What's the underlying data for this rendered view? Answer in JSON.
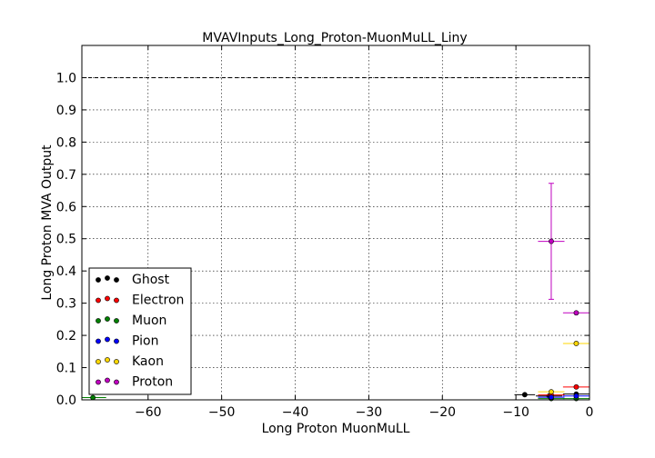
{
  "chart_data": {
    "type": "scatter",
    "title": "MVAVInputs_Long_Proton-MuonMuLL_Liny",
    "xlabel": "Long Proton MuonMuLL",
    "ylabel": "Long Proton MVA Output",
    "xlim": [
      -69,
      0
    ],
    "ylim": [
      0,
      1.1
    ],
    "xticks": [
      -60,
      -50,
      -40,
      -30,
      -20,
      -10,
      0
    ],
    "xtick_labels": [
      "−60",
      "−50",
      "−40",
      "−30",
      "−20",
      "−10",
      "0"
    ],
    "yticks": [
      0.0,
      0.1,
      0.2,
      0.3,
      0.4,
      0.5,
      0.6,
      0.7,
      0.8,
      0.9,
      1.0
    ],
    "ytick_labels": [
      "0.0",
      "0.1",
      "0.2",
      "0.3",
      "0.4",
      "0.5",
      "0.6",
      "0.7",
      "0.8",
      "0.9",
      "1.0"
    ],
    "grid": true,
    "reference_line_y": 1.0,
    "legend_position": "lower-left",
    "series": [
      {
        "name": "Ghost",
        "color": "#000000",
        "points": [
          {
            "x": -8.8,
            "y": 0.016,
            "xerr": 1.4,
            "yerr": 0.003
          },
          {
            "x": -5.5,
            "y": 0.012,
            "xerr": 1.8,
            "yerr": 0.002
          },
          {
            "x": -1.8,
            "y": 0.018,
            "xerr": 1.8,
            "yerr": 0.002
          }
        ]
      },
      {
        "name": "Electron",
        "color": "#ff0000",
        "points": [
          {
            "x": -5.2,
            "y": 0.015,
            "xerr": 1.8,
            "yerr": 0.003
          },
          {
            "x": -1.8,
            "y": 0.04,
            "xerr": 1.8,
            "yerr": 0.004
          }
        ]
      },
      {
        "name": "Muon",
        "color": "#008000",
        "points": [
          {
            "x": -67.5,
            "y": 0.007,
            "xerr": 1.8,
            "yerr": 0.003
          },
          {
            "x": -5.2,
            "y": 0.004,
            "xerr": 1.8,
            "yerr": 0.001
          },
          {
            "x": -1.8,
            "y": 0.004,
            "xerr": 1.8,
            "yerr": 0.001
          }
        ]
      },
      {
        "name": "Pion",
        "color": "#0000ff",
        "points": [
          {
            "x": -5.2,
            "y": 0.008,
            "xerr": 1.8,
            "yerr": 0.001
          },
          {
            "x": -1.8,
            "y": 0.012,
            "xerr": 1.8,
            "yerr": 0.001
          }
        ]
      },
      {
        "name": "Kaon",
        "color": "#ffd700",
        "points": [
          {
            "x": -5.2,
            "y": 0.025,
            "xerr": 1.8,
            "yerr": 0.003
          },
          {
            "x": -1.8,
            "y": 0.175,
            "xerr": 1.8,
            "yerr": 0.004
          }
        ]
      },
      {
        "name": "Proton",
        "color": "#c000c0",
        "points": [
          {
            "x": -5.2,
            "y": 0.492,
            "xerr": 1.8,
            "yerr": 0.18
          },
          {
            "x": -1.8,
            "y": 0.27,
            "xerr": 1.8,
            "yerr": 0.005
          }
        ]
      }
    ]
  }
}
